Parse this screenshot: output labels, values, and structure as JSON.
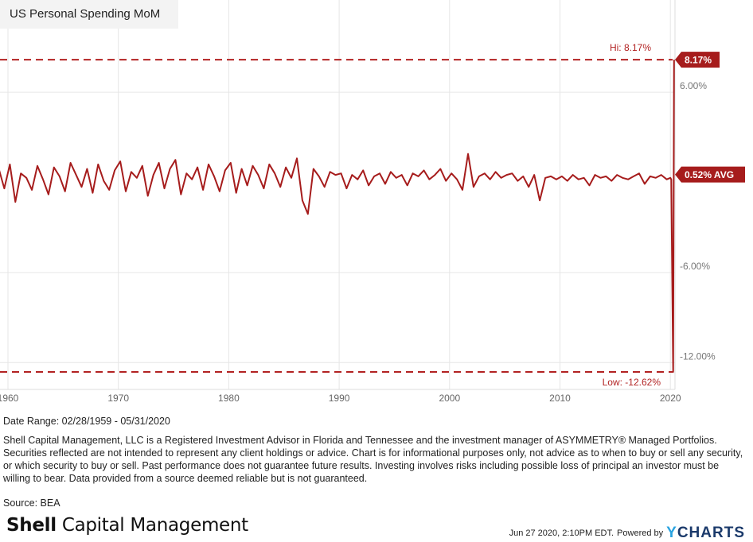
{
  "chart_data": {
    "type": "line",
    "title": "US Personal Spending MoM",
    "series": [
      {
        "name": "US Personal Spending MoM",
        "color": "#a61c1c",
        "start": 1959.17,
        "step": 0.5,
        "values": [
          0.9,
          -0.4,
          1.2,
          -1.3,
          0.6,
          0.3,
          -0.5,
          1.1,
          0.2,
          -0.8,
          1.0,
          0.4,
          -0.6,
          1.3,
          0.5,
          -0.3,
          0.9,
          -0.7,
          1.2,
          0.1,
          -0.5,
          0.8,
          1.4,
          -0.6,
          0.7,
          0.3,
          1.1,
          -0.9,
          0.5,
          1.3,
          -0.4,
          0.9,
          1.5,
          -0.8,
          0.6,
          0.2,
          1.0,
          -0.5,
          1.2,
          0.4,
          -0.6,
          0.8,
          1.3,
          -0.7,
          0.9,
          -0.2,
          1.1,
          0.5,
          -0.4,
          1.2,
          0.6,
          -0.3,
          1.0,
          0.3,
          1.6,
          -1.2,
          -2.1,
          0.9,
          0.4,
          -0.3,
          0.7,
          0.5,
          0.6,
          -0.4,
          0.5,
          0.2,
          0.8,
          -0.2,
          0.4,
          0.6,
          -0.1,
          0.7,
          0.3,
          0.5,
          -0.2,
          0.6,
          0.4,
          0.8,
          0.2,
          0.5,
          0.9,
          0.1,
          0.6,
          0.2,
          -0.5,
          1.9,
          -0.3,
          0.4,
          0.6,
          0.2,
          0.7,
          0.3,
          0.5,
          0.6,
          0.1,
          0.4,
          -0.3,
          0.5,
          -1.2,
          0.3,
          0.4,
          0.2,
          0.4,
          0.1,
          0.5,
          0.2,
          0.3,
          -0.2,
          0.5,
          0.3,
          0.4,
          0.1,
          0.5,
          0.3,
          0.2,
          0.4,
          0.6,
          -0.1,
          0.4,
          0.3,
          0.5,
          0.2
        ],
        "extra_points": [
          [
            2020.0,
            0.3
          ],
          [
            2020.08,
            0.2
          ],
          [
            2020.17,
            -6.9
          ],
          [
            2020.25,
            -12.62
          ],
          [
            2020.33,
            8.17
          ]
        ]
      }
    ],
    "xlim": [
      1959,
      2020.5
    ],
    "ylim": [
      -13.5,
      12.1
    ],
    "xticks": [
      1960,
      1970,
      1980,
      1990,
      2000,
      2010,
      2020
    ],
    "yticks": [
      {
        "v": 6,
        "label": "6.00%"
      },
      {
        "v": -6,
        "label": "-6.00%"
      },
      {
        "v": -12,
        "label": "-12.00%"
      }
    ],
    "hi": {
      "value": 8.17,
      "label": "Hi: 8.17%",
      "tag": "8.17%"
    },
    "low": {
      "value": -12.62,
      "label": "Low: -12.62%"
    },
    "avg": {
      "value": 0.52,
      "tag": "0.52% AVG"
    },
    "grid": true
  },
  "footer": {
    "date_range": "Date Range: 02/28/1959 - 05/31/2020",
    "disclaimer": "Shell Capital Management, LLC is a Registered Investment Advisor in Florida and Tennessee and the investment manager of ASYMMETRY® Managed Portfolios. Securities reflected are not intended to represent any client holdings or advice. Chart is for informational purposes only, not advice as to when to buy or sell any security, or which security to buy or sell. Past performance does not guarantee future results. Investing involves risks including possible loss of principal an investor must be willing to bear. Data provided from a source deemed reliable but is not guaranteed.",
    "source": "Source: BEA",
    "logo_bold": "Shell",
    "logo_rest": " Capital Management",
    "timestamp": "Jun 27 2020, 2:10PM EDT.",
    "powered": "Powered by",
    "brand_y": "Y",
    "brand_rest": "CHARTS"
  }
}
